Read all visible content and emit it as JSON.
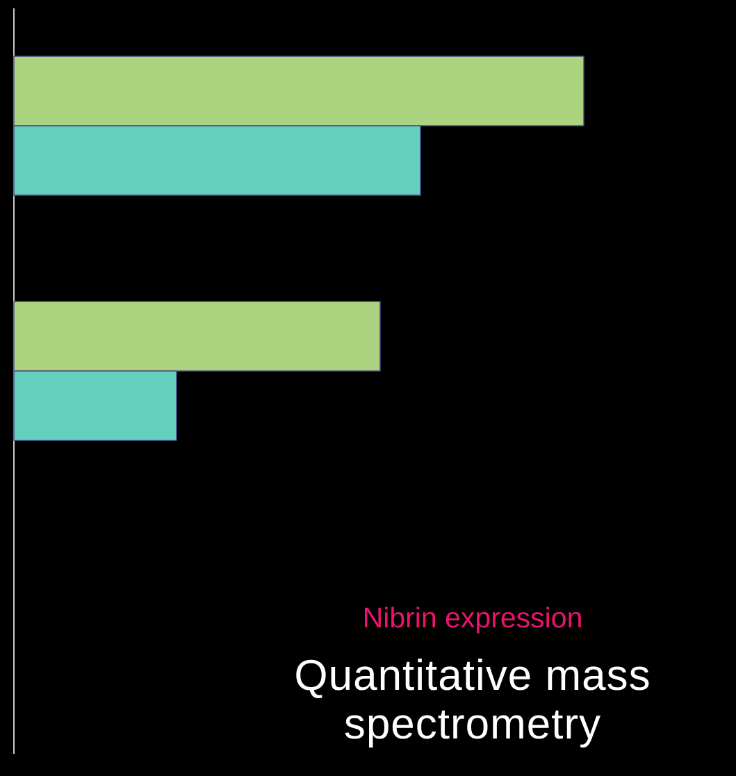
{
  "subtitle": "Nibrin expression",
  "title": "Quantitative mass spectrometry",
  "colors": {
    "background": "#000000",
    "axis": "#c8c8c8",
    "series_a": "#acd37f",
    "series_b": "#64cebf",
    "bar_border": "#4a4a8a",
    "subtitle": "#e8146e",
    "title": "#ffffff"
  },
  "chart_data": {
    "type": "bar",
    "orientation": "horizontal",
    "categories": [
      "",
      ""
    ],
    "series": [
      {
        "values": [
          82,
          52.7
        ]
      },
      {
        "values": [
          58.5,
          23.4
        ]
      }
    ],
    "xlim": [
      0,
      100
    ],
    "grid": false,
    "legend": "none",
    "title": "",
    "xlabel": "",
    "ylabel": ""
  }
}
